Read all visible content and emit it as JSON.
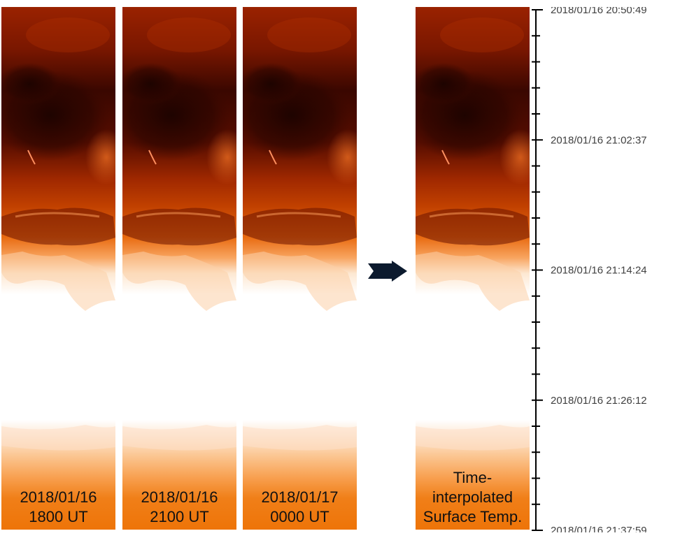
{
  "panels": [
    {
      "id": "p1",
      "line1": "2018/01/16",
      "line2": "1800 UT"
    },
    {
      "id": "p2",
      "line1": "2018/01/16",
      "line2": "2100 UT"
    },
    {
      "id": "p3",
      "line1": "2018/01/17",
      "line2": "0000 UT"
    }
  ],
  "result": {
    "line1": "Time-",
    "line2": "interpolated",
    "line3": "Surface Temp."
  },
  "timeline": {
    "labels": [
      "2018/01/16 20:50:49",
      "2018/01/16 21:02:37",
      "2018/01/16 21:14:24",
      "2018/01/16 21:26:12",
      "2018/01/16 21:37:59"
    ]
  },
  "colors": {
    "dark": "#2a0500",
    "mid": "#b03000",
    "orange": "#f07010",
    "light": "#fde3c4"
  }
}
